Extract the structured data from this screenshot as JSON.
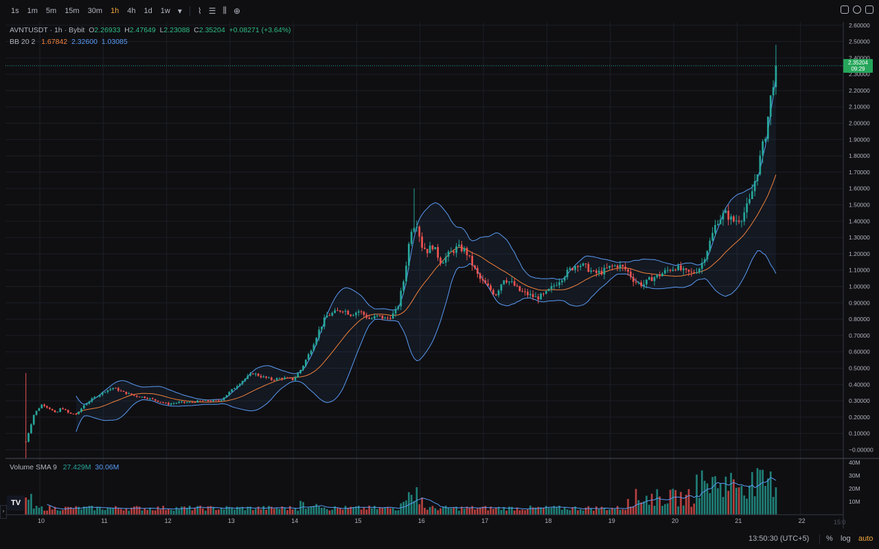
{
  "toolbar": {
    "timeframes": [
      "1s",
      "1m",
      "5m",
      "15m",
      "30m",
      "1h",
      "4h",
      "1d",
      "1w"
    ],
    "active_timeframe": "1h",
    "dropdown_icon": "chevron-down-icon",
    "tools": [
      "indicators-icon",
      "bar-style-icon",
      "compare-icon",
      "add-icon"
    ],
    "right_tools": [
      "camera-icon",
      "settings-icon",
      "fullscreen-icon"
    ]
  },
  "legend": {
    "symbol": "AVNTUSDT",
    "interval": "1h",
    "exchange": "Bybit",
    "open_label": "O",
    "open": "2.26933",
    "high_label": "H",
    "high": "2.47649",
    "low_label": "L",
    "low": "2.23088",
    "close_label": "C",
    "close": "2.35204",
    "change": "+0.08271 (+3.64%)",
    "bb_label": "BB 20 2",
    "bb_basis": "1.67842",
    "bb_upper": "2.32600",
    "bb_lower": "1.03085"
  },
  "volume_legend": {
    "label": "Volume SMA 9",
    "value1": "27.429M",
    "value2": "30.06M"
  },
  "price_badge": {
    "price": "2.35204",
    "countdown": "09:29"
  },
  "colors": {
    "up": "#26a69a",
    "down": "#ef5350",
    "basis": "#f5823a",
    "band": "#5b9cf6",
    "accent": "#f0a73a"
  },
  "chart_data": {
    "type": "candlestick",
    "price_axis": {
      "ticks": [
        "2.60000",
        "2.50000",
        "2.40000",
        "2.30000",
        "2.20000",
        "2.10000",
        "2.00000",
        "1.90000",
        "1.80000",
        "1.70000",
        "1.60000",
        "1.50000",
        "1.40000",
        "1.30000",
        "1.20000",
        "1.10000",
        "1.00000",
        "0.90000",
        "0.80000",
        "0.70000",
        "0.60000",
        "0.50000",
        "0.40000",
        "0.30000",
        "0.20000",
        "0.10000",
        "−0.00000"
      ],
      "range": [
        -0.04,
        2.62
      ]
    },
    "volume_axis": {
      "ticks": [
        "40M",
        "30M",
        "20M",
        "10M"
      ],
      "range": [
        0,
        41
      ]
    },
    "time_axis": {
      "ticks": [
        "10",
        "11",
        "12",
        "13",
        "14",
        "15",
        "16",
        "17",
        "18",
        "19",
        "20",
        "21",
        "22"
      ],
      "extra": "15:0"
    },
    "close_path": [
      [
        0.0,
        0.05
      ],
      [
        0.3,
        0.22
      ],
      [
        0.6,
        0.28
      ],
      [
        0.9,
        0.25
      ],
      [
        1.1,
        0.22
      ],
      [
        1.3,
        0.26
      ],
      [
        1.6,
        0.22
      ],
      [
        1.9,
        0.22
      ],
      [
        2.1,
        0.27
      ],
      [
        2.5,
        0.32
      ],
      [
        2.9,
        0.36
      ],
      [
        3.2,
        0.38
      ],
      [
        3.6,
        0.35
      ],
      [
        4.0,
        0.33
      ],
      [
        4.4,
        0.32
      ],
      [
        4.8,
        0.3
      ],
      [
        5.2,
        0.28
      ],
      [
        5.6,
        0.29
      ],
      [
        6.0,
        0.29
      ],
      [
        6.4,
        0.3
      ],
      [
        6.8,
        0.3
      ],
      [
        7.1,
        0.3
      ],
      [
        7.5,
        0.36
      ],
      [
        7.9,
        0.42
      ],
      [
        8.3,
        0.47
      ],
      [
        8.6,
        0.45
      ],
      [
        9.0,
        0.43
      ],
      [
        9.4,
        0.44
      ],
      [
        9.8,
        0.43
      ],
      [
        10.1,
        0.5
      ],
      [
        10.4,
        0.6
      ],
      [
        10.7,
        0.72
      ],
      [
        11.0,
        0.82
      ],
      [
        11.3,
        0.84
      ],
      [
        11.6,
        0.86
      ],
      [
        11.9,
        0.83
      ],
      [
        12.2,
        0.85
      ],
      [
        12.6,
        0.8
      ],
      [
        12.9,
        0.82
      ],
      [
        13.2,
        0.8
      ],
      [
        13.45,
        0.83
      ],
      [
        13.6,
        0.86
      ],
      [
        13.85,
        1.05
      ],
      [
        14.1,
        1.35
      ],
      [
        14.3,
        1.4
      ],
      [
        14.5,
        1.25
      ],
      [
        14.7,
        1.22
      ],
      [
        14.9,
        1.25
      ],
      [
        15.2,
        1.15
      ],
      [
        15.5,
        1.2
      ],
      [
        15.8,
        1.24
      ],
      [
        16.1,
        1.22
      ],
      [
        16.3,
        1.15
      ],
      [
        16.6,
        1.05
      ],
      [
        16.9,
        1.0
      ],
      [
        17.2,
        0.95
      ],
      [
        17.5,
        1.05
      ],
      [
        17.8,
        1.02
      ],
      [
        18.1,
        0.97
      ],
      [
        18.4,
        0.95
      ],
      [
        18.7,
        0.93
      ],
      [
        19.0,
        0.95
      ],
      [
        19.3,
        1.0
      ],
      [
        19.6,
        1.05
      ],
      [
        19.9,
        1.1
      ],
      [
        20.2,
        1.14
      ],
      [
        20.5,
        1.12
      ],
      [
        20.8,
        1.08
      ],
      [
        21.1,
        1.09
      ],
      [
        21.4,
        1.12
      ],
      [
        21.7,
        1.13
      ],
      [
        22.0,
        1.1
      ],
      [
        22.3,
        1.03
      ],
      [
        22.6,
        1.01
      ],
      [
        22.9,
        1.05
      ],
      [
        23.2,
        1.07
      ],
      [
        23.5,
        1.1
      ],
      [
        23.8,
        1.12
      ],
      [
        24.1,
        1.09
      ],
      [
        24.4,
        1.08
      ],
      [
        24.7,
        1.12
      ],
      [
        25.0,
        1.25
      ],
      [
        25.3,
        1.4
      ],
      [
        25.6,
        1.45
      ],
      [
        25.9,
        1.4
      ],
      [
        26.2,
        1.42
      ],
      [
        26.5,
        1.52
      ],
      [
        26.8,
        1.72
      ],
      [
        27.1,
        1.95
      ],
      [
        27.35,
        2.25
      ],
      [
        27.5,
        2.3
      ],
      [
        27.55,
        2.35
      ]
    ],
    "last_wick_high": 2.48,
    "spike_high": 1.6,
    "first_low": -0.05,
    "first_high": 0.47
  }
}
